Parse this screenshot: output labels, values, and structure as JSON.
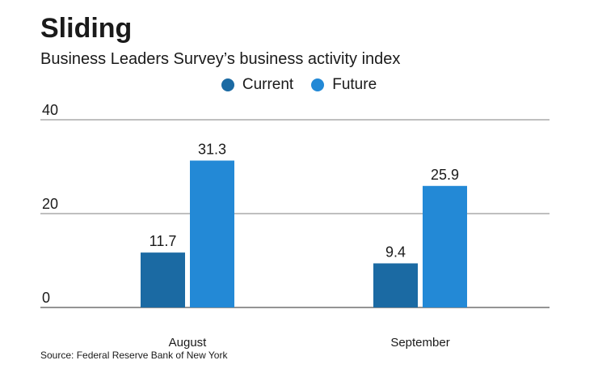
{
  "header": {
    "title": "Sliding",
    "subtitle": "Business Leaders Survey’s business activity index"
  },
  "source": "Source: Federal Reserve Bank of New York",
  "colors": {
    "current": "#1b6aa3",
    "future": "#2389d6",
    "grid": "#555555"
  },
  "chart_data": {
    "type": "bar",
    "title": "Sliding",
    "subtitle": "Business Leaders Survey’s business activity index",
    "categories": [
      "August",
      "September"
    ],
    "series": [
      {
        "name": "Current",
        "values": [
          11.7,
          9.4
        ],
        "labels": [
          "11.7",
          "9.4"
        ]
      },
      {
        "name": "Future",
        "values": [
          31.3,
          25.9
        ],
        "labels": [
          "31.3",
          "25.9"
        ]
      }
    ],
    "ylim": [
      0,
      40
    ],
    "yticks": [
      0,
      20,
      40
    ],
    "grid": true,
    "legend_position": "top-center"
  }
}
